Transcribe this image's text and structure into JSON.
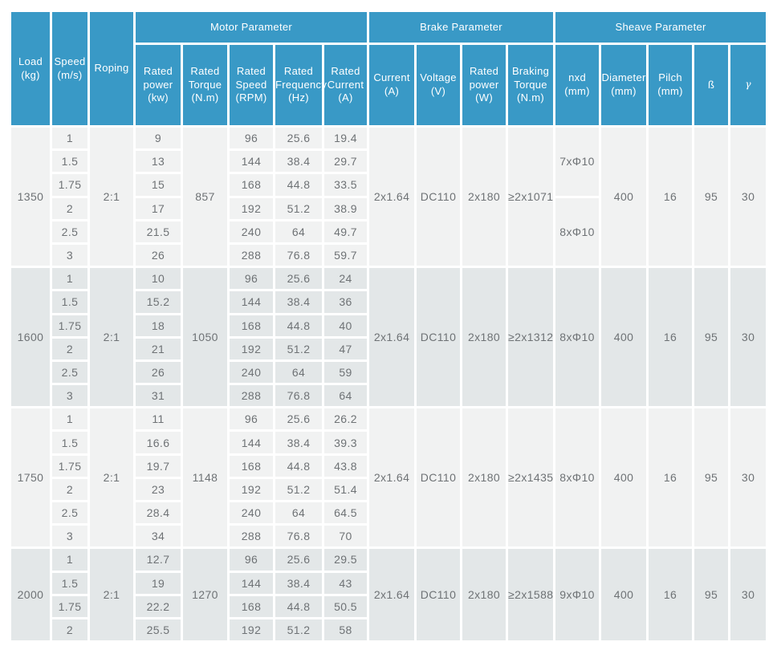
{
  "colors": {
    "header_blue": "#3999c6",
    "band_light": "#f1f2f2",
    "band_dark": "#e3e7e8",
    "text_gray": "#6e7275",
    "header_text": "#ffffff"
  },
  "table": {
    "header": {
      "load": "Load\n(kg)",
      "speed": "Speed\n(m/s)",
      "roping": "Roping",
      "groups": [
        "Motor Parameter",
        "Brake Parameter",
        "Sheave Parameter"
      ],
      "sub": [
        "Rated\npower\n(kw)",
        "Rated\nTorque\n(N.m)",
        "Rated\nSpeed\n(RPM)",
        "Rated\nFrequency\n(Hz)",
        "Rated\nCurrent\n(A)",
        "Current\n(A)",
        "Voltage\n(V)",
        "Rated\npower\n(W)",
        "Braking\nTorque\n(N.m)",
        "nxd\n(mm)",
        "Diameter\n(mm)",
        "Pilch\n(mm)",
        "ß",
        "γ"
      ]
    },
    "blocks": [
      {
        "band": "light",
        "load": "1350",
        "roping": "2:1",
        "torque": "857",
        "rows": [
          {
            "speed": "1",
            "power": "9",
            "rpm": "96",
            "freq": "25.6",
            "current": "19.4"
          },
          {
            "speed": "1.5",
            "power": "13",
            "rpm": "144",
            "freq": "38.4",
            "current": "29.7"
          },
          {
            "speed": "1.75",
            "power": "15",
            "rpm": "168",
            "freq": "44.8",
            "current": "33.5"
          },
          {
            "speed": "2",
            "power": "17",
            "rpm": "192",
            "freq": "51.2",
            "current": "38.9"
          },
          {
            "speed": "2.5",
            "power": "21.5",
            "rpm": "240",
            "freq": "64",
            "current": "49.7"
          },
          {
            "speed": "3",
            "power": "26",
            "rpm": "288",
            "freq": "76.8",
            "current": "59.7"
          }
        ],
        "brake": {
          "current": "2x1.64",
          "voltage": "DC110",
          "power": "2x180",
          "braking_torque": "≥2x1071"
        },
        "sheave": {
          "nxd": [
            {
              "label": "7xΦ10",
              "span": 3
            },
            {
              "label": "8xΦ10",
              "span": 3
            }
          ],
          "diameter": "400",
          "pilch": "16",
          "beta": "95",
          "gamma": "30"
        }
      },
      {
        "band": "dark",
        "load": "1600",
        "roping": "2:1",
        "torque": "1050",
        "rows": [
          {
            "speed": "1",
            "power": "10",
            "rpm": "96",
            "freq": "25.6",
            "current": "24"
          },
          {
            "speed": "1.5",
            "power": "15.2",
            "rpm": "144",
            "freq": "38.4",
            "current": "36"
          },
          {
            "speed": "1.75",
            "power": "18",
            "rpm": "168",
            "freq": "44.8",
            "current": "40"
          },
          {
            "speed": "2",
            "power": "21",
            "rpm": "192",
            "freq": "51.2",
            "current": "47"
          },
          {
            "speed": "2.5",
            "power": "26",
            "rpm": "240",
            "freq": "64",
            "current": "59"
          },
          {
            "speed": "3",
            "power": "31",
            "rpm": "288",
            "freq": "76.8",
            "current": "64"
          }
        ],
        "brake": {
          "current": "2x1.64",
          "voltage": "DC110",
          "power": "2x180",
          "braking_torque": "≥2x1312"
        },
        "sheave": {
          "nxd": [
            {
              "label": "8xΦ10",
              "span": 6
            }
          ],
          "diameter": "400",
          "pilch": "16",
          "beta": "95",
          "gamma": "30"
        }
      },
      {
        "band": "light",
        "load": "1750",
        "roping": "2:1",
        "torque": "1148",
        "rows": [
          {
            "speed": "1",
            "power": "11",
            "rpm": "96",
            "freq": "25.6",
            "current": "26.2"
          },
          {
            "speed": "1.5",
            "power": "16.6",
            "rpm": "144",
            "freq": "38.4",
            "current": "39.3"
          },
          {
            "speed": "1.75",
            "power": "19.7",
            "rpm": "168",
            "freq": "44.8",
            "current": "43.8"
          },
          {
            "speed": "2",
            "power": "23",
            "rpm": "192",
            "freq": "51.2",
            "current": "51.4"
          },
          {
            "speed": "2.5",
            "power": "28.4",
            "rpm": "240",
            "freq": "64",
            "current": "64.5"
          },
          {
            "speed": "3",
            "power": "34",
            "rpm": "288",
            "freq": "76.8",
            "current": "70"
          }
        ],
        "brake": {
          "current": "2x1.64",
          "voltage": "DC110",
          "power": "2x180",
          "braking_torque": "≥2x1435"
        },
        "sheave": {
          "nxd": [
            {
              "label": "8xΦ10",
              "span": 6
            }
          ],
          "diameter": "400",
          "pilch": "16",
          "beta": "95",
          "gamma": "30"
        }
      },
      {
        "band": "dark",
        "load": "2000",
        "roping": "2:1",
        "torque": "1270",
        "rows": [
          {
            "speed": "1",
            "power": "12.7",
            "rpm": "96",
            "freq": "25.6",
            "current": "29.5"
          },
          {
            "speed": "1.5",
            "power": "19",
            "rpm": "144",
            "freq": "38.4",
            "current": "43"
          },
          {
            "speed": "1.75",
            "power": "22.2",
            "rpm": "168",
            "freq": "44.8",
            "current": "50.5"
          },
          {
            "speed": "2",
            "power": "25.5",
            "rpm": "192",
            "freq": "51.2",
            "current": "58"
          }
        ],
        "brake": {
          "current": "2x1.64",
          "voltage": "DC110",
          "power": "2x180",
          "braking_torque": "≥2x1588"
        },
        "sheave": {
          "nxd": [
            {
              "label": "9xΦ10",
              "span": 4
            }
          ],
          "diameter": "400",
          "pilch": "16",
          "beta": "95",
          "gamma": "30"
        }
      }
    ]
  }
}
